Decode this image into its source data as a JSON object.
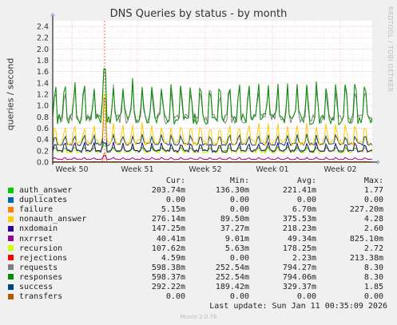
{
  "chart_data": {
    "type": "line",
    "title": "DNS Queries by status - by month",
    "ylabel": "queries / second",
    "ylim": [
      0,
      2.5
    ],
    "y_ticks": [
      "0.0",
      "0.2",
      "0.4",
      "0.6",
      "0.8",
      "1.0",
      "1.2",
      "1.4",
      "1.6",
      "1.8",
      "2.0",
      "2.2",
      "2.4"
    ],
    "x_ticks": [
      "Week 50",
      "Week 51",
      "Week 52",
      "Week 01",
      "Week 02"
    ],
    "grid": true,
    "series": [
      {
        "name": "auth_answer",
        "color": "#00cc00",
        "level": 0.2,
        "amp": 0.04,
        "spike": 0.45
      },
      {
        "name": "duplicates",
        "color": "#0066b3",
        "level": 0.0,
        "amp": 0.0,
        "spike": 0.0
      },
      {
        "name": "failure",
        "color": "#ff8000",
        "level": 0.006,
        "amp": 0.004,
        "spike": 0.2
      },
      {
        "name": "nonauth_answer",
        "color": "#ffcc00",
        "level": 0.35,
        "amp": 0.2,
        "spike": 1.6
      },
      {
        "name": "nxdomain",
        "color": "#330099",
        "level": 0.2,
        "amp": 0.09,
        "spike": 1.5
      },
      {
        "name": "nxrrset",
        "color": "#990099",
        "level": 0.05,
        "amp": 0.02,
        "spike": 0.15
      },
      {
        "name": "recursion",
        "color": "#ccff00",
        "level": 0.18,
        "amp": 0.1,
        "spike": 1.3
      },
      {
        "name": "rejections",
        "color": "#ff0000",
        "level": 0.002,
        "amp": 0.002,
        "spike": 0.0
      },
      {
        "name": "requests",
        "color": "#808080",
        "level": 0.78,
        "amp": 0.35,
        "spike": 2.2
      },
      {
        "name": "responses",
        "color": "#008f00",
        "level": 0.78,
        "amp": 0.4,
        "spike": 2.2
      },
      {
        "name": "success",
        "color": "#00487d",
        "level": 0.32,
        "amp": 0.1,
        "spike": 0.45
      },
      {
        "name": "transfers",
        "color": "#b35a00",
        "level": 0.0,
        "amp": 0.0,
        "spike": 0.0
      }
    ]
  },
  "legend": {
    "headers": {
      "cur": "Cur:",
      "min": "Min:",
      "avg": "Avg:",
      "max": "Max:"
    },
    "rows": [
      {
        "name": "auth_answer",
        "color": "#00cc00",
        "cur": "203.74m",
        "min": "136.30m",
        "avg": "221.41m",
        "max": "1.77"
      },
      {
        "name": "duplicates",
        "color": "#0066b3",
        "cur": "0.00",
        "min": "0.00",
        "avg": "0.00",
        "max": "0.00"
      },
      {
        "name": "failure",
        "color": "#ff8000",
        "cur": "5.15m",
        "min": "0.00",
        "avg": "6.70m",
        "max": "227.20m"
      },
      {
        "name": "nonauth_answer",
        "color": "#ffcc00",
        "cur": "276.14m",
        "min": "89.50m",
        "avg": "375.53m",
        "max": "4.28"
      },
      {
        "name": "nxdomain",
        "color": "#330099",
        "cur": "147.25m",
        "min": "37.27m",
        "avg": "218.23m",
        "max": "2.60"
      },
      {
        "name": "nxrrset",
        "color": "#990099",
        "cur": "40.41m",
        "min": "9.01m",
        "avg": "49.34m",
        "max": "825.10m"
      },
      {
        "name": "recursion",
        "color": "#ccff00",
        "cur": "107.62m",
        "min": "5.63m",
        "avg": "178.25m",
        "max": "2.72"
      },
      {
        "name": "rejections",
        "color": "#ff0000",
        "cur": "4.59m",
        "min": "0.00",
        "avg": "2.23m",
        "max": "213.38m"
      },
      {
        "name": "requests",
        "color": "#808080",
        "cur": "598.38m",
        "min": "252.54m",
        "avg": "794.27m",
        "max": "8.30"
      },
      {
        "name": "responses",
        "color": "#008f00",
        "cur": "598.37m",
        "min": "252.54m",
        "avg": "794.06m",
        "max": "8.30"
      },
      {
        "name": "success",
        "color": "#00487d",
        "cur": "292.22m",
        "min": "189.42m",
        "avg": "329.37m",
        "max": "1.85"
      },
      {
        "name": "transfers",
        "color": "#b35a00",
        "cur": "0.00",
        "min": "0.00",
        "avg": "0.00",
        "max": "0.00"
      }
    ]
  },
  "footer": {
    "last_update": "Last update: Sun Jan 11 00:35:09 2026",
    "version": "Munin 2.0.76"
  },
  "watermark": "RRDTOOL / TOBI OETIKER"
}
